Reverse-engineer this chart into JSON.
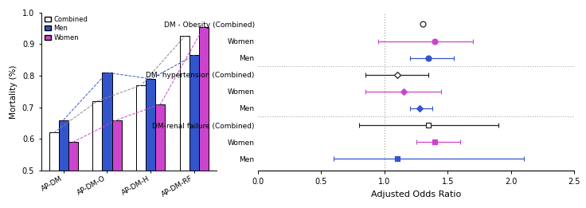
{
  "bar_categories": [
    "AP-DM",
    "AP-DM-O",
    "AP-DM-H",
    "AP-DM-RF"
  ],
  "bar_combined": [
    0.62,
    0.72,
    0.77,
    0.925
  ],
  "bar_men": [
    0.66,
    0.81,
    0.79,
    0.865
  ],
  "bar_women": [
    0.59,
    0.66,
    0.71,
    0.955
  ],
  "bar_colors": {
    "combined": "white",
    "men": "#3355cc",
    "women": "#cc44cc"
  },
  "bar_edgecolor": "black",
  "ylabel_bar": "Mortality (%)",
  "ylim_bar": [
    0.5,
    1.0
  ],
  "yticks_bar": [
    0.5,
    0.6,
    0.7,
    0.8,
    0.9,
    1.0
  ],
  "forest_rows": [
    "DM - Obesity (Combined)",
    "Women",
    "Men",
    "DM- hypertension (Combined)",
    "Women",
    "Men",
    "DM-renal failure (Combined)",
    "Women",
    "Men"
  ],
  "forest_or": [
    1.3,
    1.4,
    1.35,
    1.1,
    1.15,
    1.28,
    1.35,
    1.4,
    1.1
  ],
  "forest_lo": [
    1.3,
    0.95,
    1.2,
    0.85,
    0.85,
    1.2,
    0.8,
    1.25,
    0.6
  ],
  "forest_hi": [
    1.3,
    1.7,
    1.55,
    1.35,
    1.45,
    1.38,
    1.9,
    1.6,
    2.1
  ],
  "forest_colors": [
    "#222222",
    "#cc44cc",
    "#3355cc",
    "#222222",
    "#cc44cc",
    "#3355cc",
    "#222222",
    "#cc44cc",
    "#3355cc"
  ],
  "forest_markers": [
    "o",
    "o",
    "o",
    "D",
    "D",
    "D",
    "s",
    "s",
    "s"
  ],
  "forest_marker_filled": [
    false,
    true,
    true,
    false,
    true,
    true,
    false,
    true,
    true
  ],
  "forest_xlabel": "Adjusted Odds Ratio",
  "forest_xlim": [
    0.0,
    2.5
  ],
  "forest_xticks": [
    0.0,
    0.5,
    1.0,
    1.5,
    2.0,
    2.5
  ],
  "separator_rows": [
    3,
    6
  ],
  "dotted_vline": 1.0
}
